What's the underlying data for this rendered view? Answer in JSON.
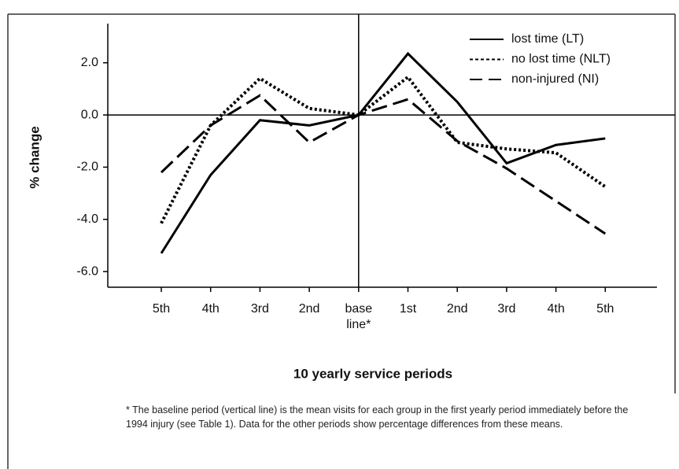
{
  "chart_data": {
    "type": "line",
    "xlabel": "10 yearly service periods",
    "ylabel": "% change",
    "categories": [
      "5th",
      "4th",
      "3rd",
      "2nd",
      "base line*",
      "1st",
      "2nd",
      "3rd",
      "4th",
      "5th"
    ],
    "series": [
      {
        "name": "lost time (LT)",
        "color": "#000000",
        "style": "solid",
        "values": [
          -5.3,
          -2.3,
          -0.2,
          -0.4,
          0,
          2.35,
          0.5,
          -1.85,
          -1.15,
          -0.9
        ]
      },
      {
        "name": "no lost time (NLT)",
        "color": "#000000",
        "style": "dotted",
        "values": [
          -4.15,
          -0.4,
          1.4,
          0.25,
          0,
          1.45,
          -1.05,
          -1.3,
          -1.45,
          -2.75
        ]
      },
      {
        "name": "non-injured (NI)",
        "color": "#000000",
        "style": "dashed",
        "values": [
          -2.2,
          -0.4,
          0.75,
          -1.05,
          0,
          0.6,
          -1.0,
          -2.05,
          -3.3,
          -4.55
        ]
      }
    ],
    "ylim": [
      -6.6,
      3.5
    ],
    "yticks": [
      {
        "value": 2,
        "label": "2.0"
      },
      {
        "value": 0,
        "label": "0.0"
      },
      {
        "value": -2,
        "label": "-2.0"
      },
      {
        "value": -4,
        "label": "-4.0"
      },
      {
        "value": -6,
        "label": "-6.0"
      }
    ],
    "legend": "upper right",
    "footnote": "* The baseline period (vertical line) is the mean visits for each group in the first yearly period immediately before the 1994 injury (see Table 1). Data for the other periods show percentage differences from these means."
  }
}
